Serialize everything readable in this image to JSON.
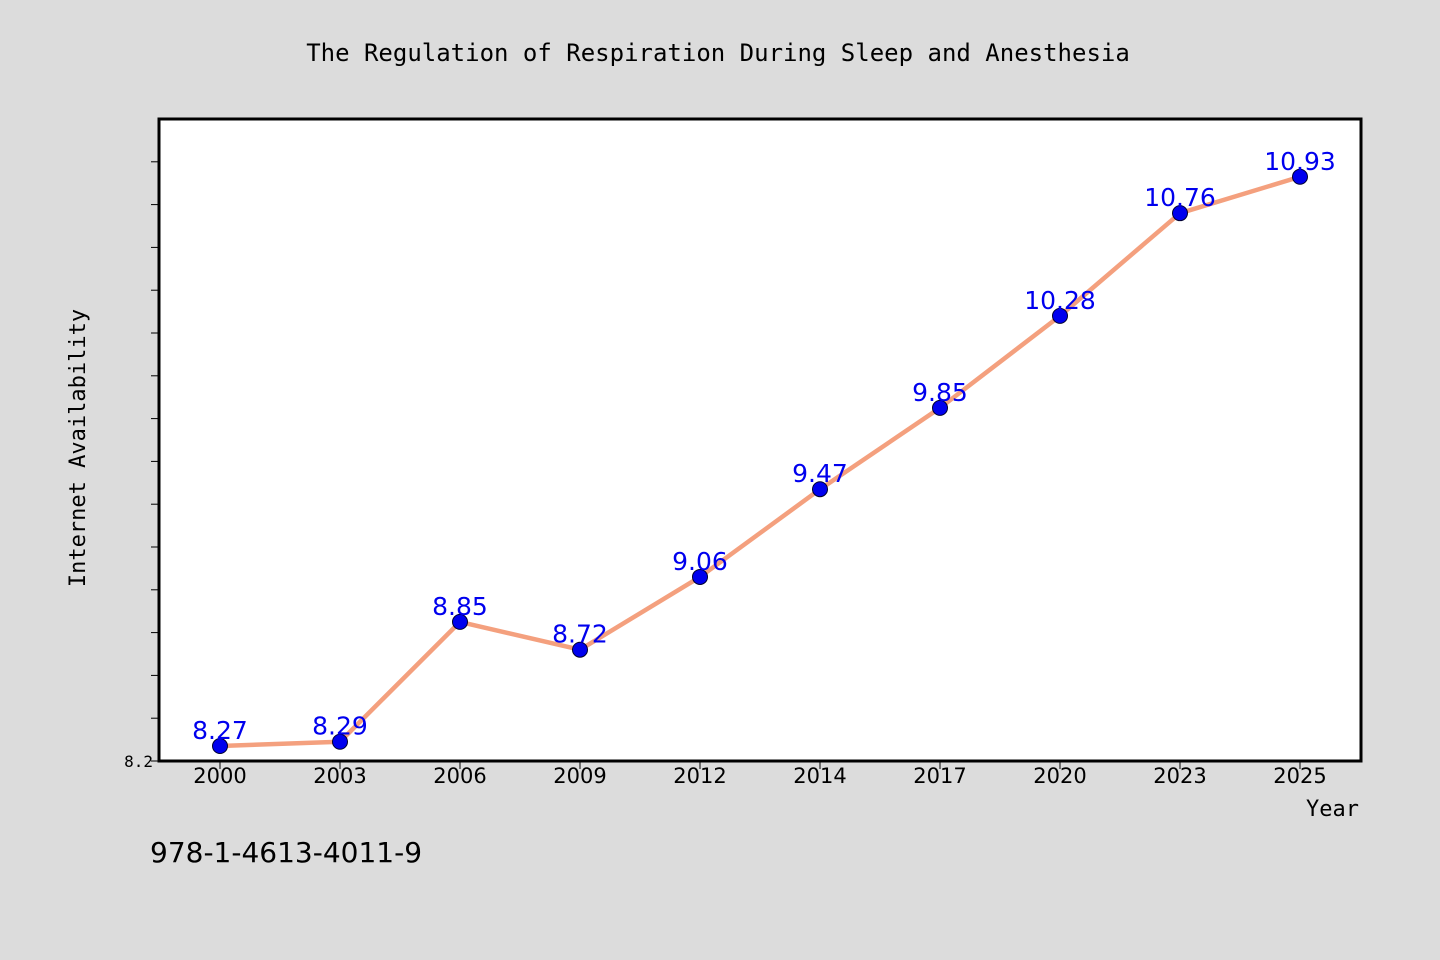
{
  "chart_data": {
    "type": "line",
    "title": "The Regulation of Respiration During Sleep and Anesthesia",
    "xlabel": "Year",
    "ylabel": "Internet Availability",
    "categories": [
      "2000",
      "2003",
      "2006",
      "2009",
      "2012",
      "2014",
      "2017",
      "2020",
      "2023",
      "2025"
    ],
    "series": [
      {
        "values": [
          8.27,
          8.29,
          8.85,
          8.72,
          9.06,
          9.47,
          9.85,
          10.28,
          10.76,
          10.93
        ],
        "data_labels": [
          "8.27",
          "8.29",
          "8.85",
          "8.72",
          "9.06",
          "9.47",
          "9.85",
          "10.28",
          "10.76",
          "10.93"
        ],
        "line_color": "#f4a07e",
        "marker_color": "#0000ee",
        "label_color": "#0000ee"
      }
    ],
    "ylim": [
      8.2,
      11.2
    ],
    "ytick_labels": [
      "8.2"
    ],
    "grid": false,
    "legend": "none"
  },
  "footer": {
    "isbn": "978-1-4613-4011-9"
  },
  "colors": {
    "background": "#dcdcdc",
    "plot_background": "#ffffff",
    "frame": "#000000"
  }
}
